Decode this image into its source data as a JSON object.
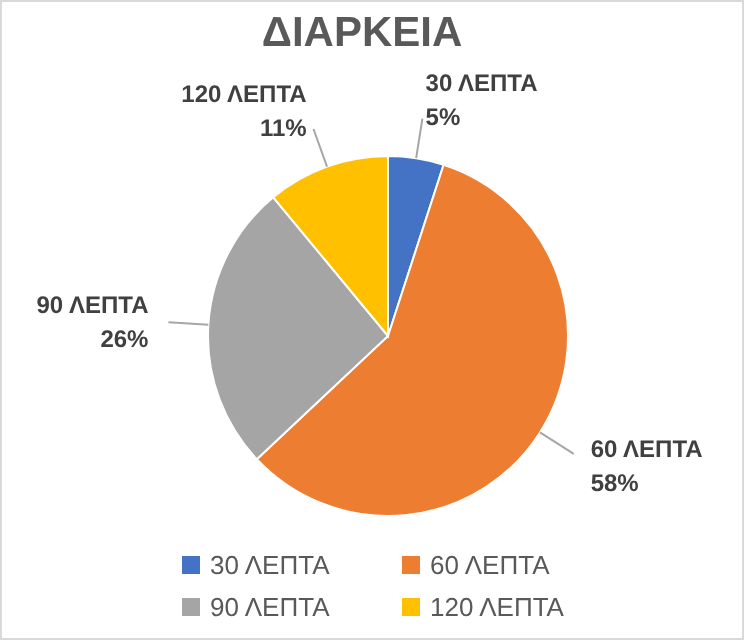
{
  "chart_data": {
    "type": "pie",
    "title": "ΔΙΑΡΚΕΙΑ",
    "categories": [
      "30 ΛΕΠΤΑ",
      "60 ΛΕΠΤΑ",
      "90 ΛΕΠΤΑ",
      "120 ΛΕΠΤΑ"
    ],
    "values": [
      5,
      58,
      26,
      11
    ],
    "colors": [
      "#4472c4",
      "#ed7d31",
      "#a5a5a5",
      "#ffc000"
    ],
    "value_labels": [
      "5%",
      "58%",
      "26%",
      "11%"
    ],
    "legend": "bottom"
  }
}
